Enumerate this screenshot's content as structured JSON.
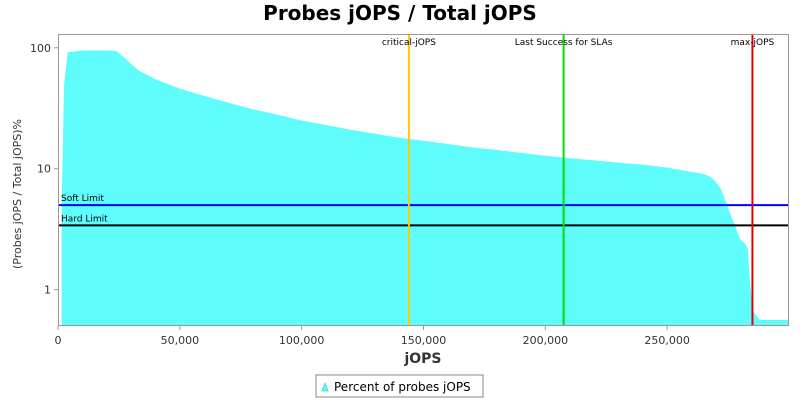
{
  "chart_data": {
    "type": "area",
    "title": "Probes jOPS / Total jOPS",
    "xlabel": "jOPS",
    "ylabel": "(Probes jOPS / Total jOPS)%",
    "xlim": [
      0,
      300000
    ],
    "ylim": [
      0.5,
      130
    ],
    "y_scale": "log",
    "x_ticks": [
      0,
      50000,
      100000,
      150000,
      200000,
      250000
    ],
    "x_tick_labels": [
      "0",
      "50,000",
      "100,000",
      "150,000",
      "200,000",
      "250,000"
    ],
    "y_ticks": [
      1,
      10,
      100
    ],
    "y_tick_labels": [
      "1",
      "10",
      "100"
    ],
    "grid": false,
    "legend_position": "bottom",
    "series": [
      {
        "name": "Percent of probes jOPS",
        "color": "#5ffcfc",
        "x": [
          1500,
          2500,
          4000,
          10000,
          20000,
          24000,
          28000,
          33000,
          40000,
          50000,
          60000,
          70000,
          80000,
          90000,
          100000,
          110000,
          120000,
          130000,
          140000,
          150000,
          160000,
          170000,
          180000,
          190000,
          200000,
          210000,
          220000,
          230000,
          240000,
          250000,
          255000,
          260000,
          264000,
          266000,
          268000,
          270000,
          272000,
          274000,
          276000,
          278000,
          280000,
          282000,
          283000,
          284000,
          285000,
          286000,
          288000,
          292000,
          295000,
          300000
        ],
        "y": [
          5,
          50,
          92,
          95,
          95,
          94,
          80,
          65,
          55,
          46,
          40,
          35,
          31,
          28,
          25,
          23,
          21,
          19.5,
          18,
          17,
          16,
          15,
          14.3,
          13.5,
          12.8,
          12.2,
          11.7,
          11.2,
          10.8,
          10.2,
          9.8,
          9.4,
          9.1,
          8.9,
          8.5,
          7.8,
          6.8,
          5.4,
          4.2,
          3.3,
          2.6,
          2.4,
          2.2,
          1.2,
          0.7,
          0.63,
          0.56,
          0.56,
          0.56,
          0.56
        ]
      }
    ],
    "vertical_markers": [
      {
        "label": "critical-jOPS",
        "x": 144000,
        "color": "#ffc800"
      },
      {
        "label": "Last Success for SLAs",
        "x": 207500,
        "color": "#00e000"
      },
      {
        "label": "max-jOPS",
        "x": 285000,
        "color": "#e00000"
      }
    ],
    "horizontal_markers": [
      {
        "label": "Soft Limit",
        "y": 5,
        "color": "#0000ff"
      },
      {
        "label": "Hard Limit",
        "y": 3.4,
        "color": "#000000"
      }
    ]
  }
}
